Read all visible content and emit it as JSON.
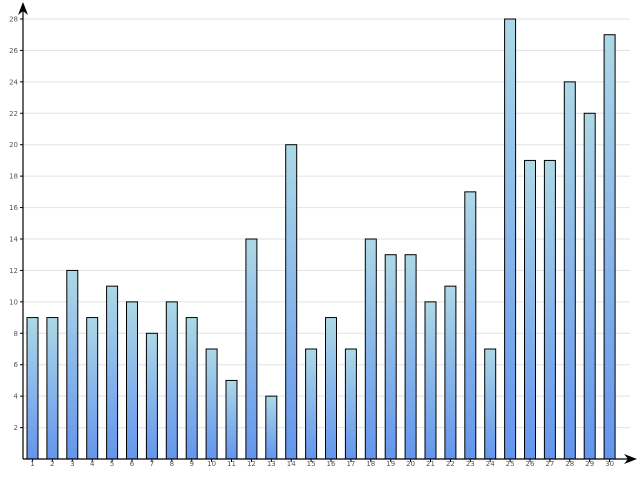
{
  "chart_data": {
    "type": "bar",
    "title": "",
    "xlabel": "",
    "ylabel": "",
    "categories": [
      "1",
      "2",
      "3",
      "4",
      "5",
      "6",
      "7",
      "8",
      "9",
      "10",
      "11",
      "12",
      "13",
      "14",
      "15",
      "16",
      "17",
      "18",
      "19",
      "20",
      "21",
      "22",
      "23",
      "24",
      "25",
      "26",
      "27",
      "28",
      "29",
      "30"
    ],
    "values": [
      9,
      9,
      12,
      9,
      11,
      10,
      8,
      10,
      9,
      7,
      5,
      14,
      4,
      20,
      7,
      9,
      7,
      14,
      13,
      13,
      10,
      11,
      17,
      7,
      28,
      19,
      19,
      24,
      22,
      27
    ],
    "yticks": [
      2,
      4,
      6,
      8,
      10,
      12,
      14,
      16,
      18,
      20,
      22,
      24,
      26,
      28
    ],
    "ylim": [
      0,
      28
    ],
    "grid": true,
    "colors": {
      "bar_top": "#add8e6",
      "bar_bottom": "#6495ed",
      "bar_edge": "#000000",
      "grid": "#e2e2e2",
      "axis": "#000000"
    }
  }
}
